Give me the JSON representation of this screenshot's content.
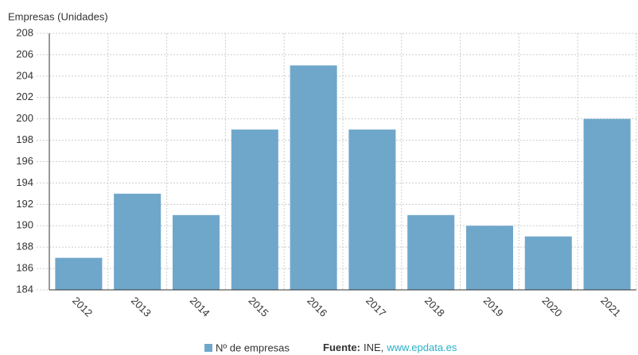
{
  "chart_data": {
    "type": "bar",
    "y_axis_label": "Empresas (Unidades)",
    "categories": [
      "2012",
      "2013",
      "2014",
      "2015",
      "2016",
      "2017",
      "2018",
      "2019",
      "2020",
      "2021"
    ],
    "series": [
      {
        "name": "Nº de empresas",
        "color": "#6fa7cb",
        "values": [
          187,
          193,
          191,
          199,
          205,
          199,
          191,
          190,
          189,
          200
        ]
      }
    ],
    "ylim": [
      184,
      208
    ],
    "yticks": [
      184,
      186,
      188,
      190,
      192,
      194,
      196,
      198,
      200,
      202,
      204,
      206,
      208
    ],
    "grid": true,
    "source": {
      "label": "Fuente:",
      "text": "INE,",
      "link": "www.epdata.es"
    }
  }
}
